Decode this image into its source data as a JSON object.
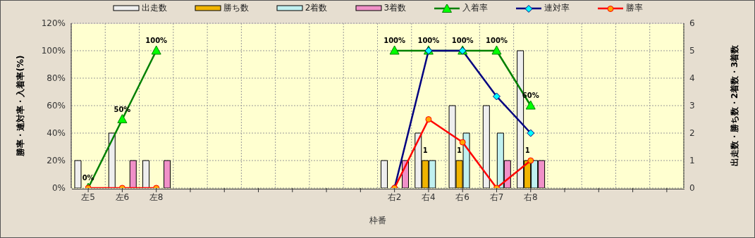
{
  "chart_data": {
    "type": "bar",
    "xlabel": "枠番",
    "ylabel": "勝率・連対率・入着率(%)",
    "y2label": "出走数・勝ち数・2着数・3着数",
    "categories": [
      "左5",
      "左6",
      "左8",
      null,
      null,
      null,
      null,
      null,
      null,
      "右2",
      "右4",
      "右6",
      "右7",
      "右8",
      null,
      null,
      null,
      null
    ],
    "series": [
      {
        "name": "出走数",
        "axis": "y2",
        "color": "#eeeeee",
        "values": [
          1,
          2,
          1,
          null,
          null,
          null,
          null,
          null,
          null,
          1,
          2,
          3,
          3,
          5,
          null,
          null,
          null,
          null
        ]
      },
      {
        "name": "勝ち数",
        "axis": "y2",
        "color": "#f0b400",
        "values": [
          null,
          null,
          null,
          null,
          null,
          null,
          null,
          null,
          null,
          null,
          1,
          1,
          null,
          1,
          null,
          null,
          null,
          null
        ],
        "value_labels": [
          null,
          null,
          null,
          null,
          null,
          null,
          null,
          null,
          null,
          null,
          "1",
          "1",
          null,
          "1",
          null,
          null,
          null,
          null
        ]
      },
      {
        "name": "2着数",
        "axis": "y2",
        "color": "#c0f0f0",
        "values": [
          null,
          null,
          null,
          null,
          null,
          null,
          null,
          null,
          null,
          null,
          1,
          2,
          2,
          1,
          null,
          null,
          null,
          null
        ]
      },
      {
        "name": "3着数",
        "axis": "y2",
        "color": "#f090c8",
        "values": [
          null,
          1,
          1,
          null,
          null,
          null,
          null,
          null,
          null,
          1,
          null,
          null,
          1,
          1,
          null,
          null,
          null,
          null
        ]
      },
      {
        "name": "入着率",
        "type": "line",
        "marker": "triangle",
        "color": "#008000",
        "values": [
          0,
          50,
          100,
          null,
          null,
          null,
          null,
          null,
          null,
          100,
          100,
          100,
          100,
          60,
          null,
          null,
          null,
          null
        ],
        "value_labels": [
          "0%",
          "50%",
          "100%",
          null,
          null,
          null,
          null,
          null,
          null,
          "100%",
          "100%",
          "100%",
          "100%",
          "60%",
          null,
          null,
          null,
          null
        ]
      },
      {
        "name": "連対率",
        "type": "line",
        "marker": "diamond",
        "color": "#000080",
        "values": [
          null,
          null,
          null,
          null,
          null,
          null,
          null,
          null,
          null,
          0,
          100,
          100,
          66.7,
          40,
          null,
          null,
          null,
          null
        ]
      },
      {
        "name": "勝率",
        "type": "line",
        "marker": "circle",
        "color": "#ff0000",
        "values": [
          0,
          0,
          0,
          null,
          null,
          null,
          null,
          null,
          null,
          0,
          50,
          33.3,
          0,
          20,
          null,
          null,
          null,
          null
        ]
      }
    ],
    "ylim": [
      0,
      120
    ],
    "yticks": [
      {
        "value": 0,
        "label": "0%"
      },
      {
        "value": 20,
        "label": "20%"
      },
      {
        "value": 40,
        "label": "40%"
      },
      {
        "value": 60,
        "label": "60%"
      },
      {
        "value": 80,
        "label": "80%"
      },
      {
        "value": 100,
        "label": "100%"
      },
      {
        "value": 120,
        "label": "120%"
      }
    ],
    "y2lim": [
      0,
      6
    ],
    "y2ticks": [
      0,
      1,
      2,
      3,
      4,
      5,
      6
    ],
    "grid": true,
    "legend": "top"
  }
}
